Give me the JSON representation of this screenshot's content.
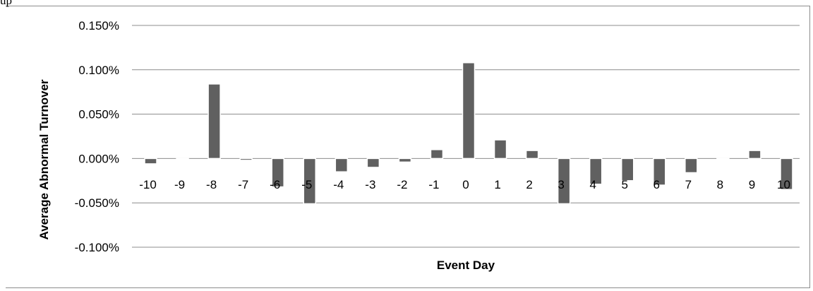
{
  "page": {
    "top_fragment": "up"
  },
  "chart_data": {
    "type": "bar",
    "title": "",
    "xlabel": "Event Day",
    "ylabel": "Average Abnormal Turnover",
    "categories": [
      "-10",
      "-9",
      "-8",
      "-7",
      "-6",
      "-5",
      "-4",
      "-3",
      "-2",
      "-1",
      "0",
      "1",
      "2",
      "3",
      "4",
      "5",
      "6",
      "7",
      "8",
      "9",
      "10"
    ],
    "series": [
      {
        "values": [
          -0.006,
          -0.001,
          0.084,
          -0.002,
          -0.032,
          -0.051,
          -0.015,
          -0.01,
          -0.004,
          0.01,
          0.108,
          0.021,
          0.009,
          -0.051,
          -0.029,
          -0.025,
          -0.03,
          -0.016,
          -0.001,
          0.009,
          -0.035
        ]
      }
    ],
    "yticks": [
      "0.150%",
      "0.100%",
      "0.050%",
      "0.000%",
      "-0.050%",
      "-0.100%"
    ],
    "ylim": [
      -0.1,
      0.15
    ],
    "y_unit": "%",
    "grid": true,
    "legend": "none",
    "colors": {
      "bar": "#606060",
      "grid": "#8c8c8c",
      "bar_edge": "#ffffff"
    }
  }
}
